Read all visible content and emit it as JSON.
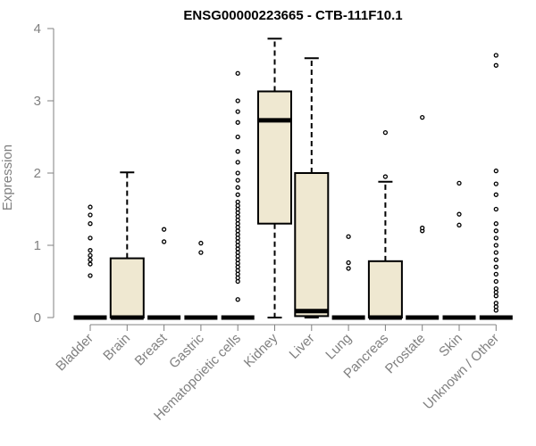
{
  "chart_data": {
    "type": "boxplot",
    "title": "ENSG00000223665 - CTB-111F10.1",
    "ylabel": "Expression",
    "xlabel": "",
    "ylim": [
      0,
      4
    ],
    "yticks": [
      0,
      1,
      2,
      3,
      4
    ],
    "colors": {
      "box_fill": "#efe8d1",
      "axis": "#808080"
    },
    "categories": [
      "Bladder",
      "Brain",
      "Breast",
      "Gastric",
      "Hematopoietic cells",
      "Kidney",
      "Liver",
      "Lung",
      "Pancreas",
      "Prostate",
      "Skin",
      "Unknown / Other"
    ],
    "boxes": [
      {
        "name": "Bladder",
        "q1": 0,
        "median": 0,
        "q3": 0,
        "wlo": 0,
        "whi": 0,
        "outliers": [
          0.58,
          0.74,
          0.8,
          0.86,
          0.93,
          1.1,
          1.3,
          1.42,
          1.53
        ]
      },
      {
        "name": "Brain",
        "q1": 0,
        "median": 0,
        "q3": 0.82,
        "wlo": 0,
        "whi": 2.01,
        "outliers": []
      },
      {
        "name": "Breast",
        "q1": 0,
        "median": 0,
        "q3": 0,
        "wlo": 0,
        "whi": 0,
        "outliers": [
          1.05,
          1.22
        ]
      },
      {
        "name": "Gastric",
        "q1": 0,
        "median": 0,
        "q3": 0,
        "wlo": 0,
        "whi": 0,
        "outliers": [
          0.9,
          1.03
        ]
      },
      {
        "name": "Hematopoietic cells",
        "q1": 0,
        "median": 0,
        "q3": 0,
        "wlo": 0,
        "whi": 0,
        "outliers": [
          0.25,
          0.5,
          0.55,
          0.6,
          0.65,
          0.7,
          0.75,
          0.8,
          0.85,
          0.9,
          0.95,
          1.0,
          1.05,
          1.1,
          1.15,
          1.2,
          1.25,
          1.3,
          1.35,
          1.4,
          1.45,
          1.5,
          1.55,
          1.6,
          1.7,
          1.8,
          1.9,
          2.0,
          2.15,
          2.3,
          2.5,
          2.7,
          2.85,
          3.0,
          3.38
        ]
      },
      {
        "name": "Kidney",
        "q1": 1.3,
        "median": 2.73,
        "q3": 3.13,
        "wlo": 0,
        "whi": 3.86,
        "outliers": []
      },
      {
        "name": "Liver",
        "q1": 0.02,
        "median": 0.09,
        "q3": 2.0,
        "wlo": 0,
        "whi": 3.59,
        "outliers": []
      },
      {
        "name": "Lung",
        "q1": 0,
        "median": 0,
        "q3": 0,
        "wlo": 0,
        "whi": 0,
        "outliers": [
          0.68,
          0.76,
          1.12
        ]
      },
      {
        "name": "Pancreas",
        "q1": 0,
        "median": 0,
        "q3": 0.78,
        "wlo": 0,
        "whi": 1.88,
        "outliers": [
          1.95,
          2.56
        ]
      },
      {
        "name": "Prostate",
        "q1": 0,
        "median": 0,
        "q3": 0,
        "wlo": 0,
        "whi": 0,
        "outliers": [
          1.2,
          1.24,
          2.77
        ]
      },
      {
        "name": "Skin",
        "q1": 0,
        "median": 0,
        "q3": 0,
        "wlo": 0,
        "whi": 0,
        "outliers": [
          1.28,
          1.43,
          1.86
        ]
      },
      {
        "name": "Unknown / Other",
        "q1": 0,
        "median": 0,
        "q3": 0,
        "wlo": 0,
        "whi": 0,
        "outliers": [
          0.1,
          0.15,
          0.2,
          0.3,
          0.35,
          0.4,
          0.5,
          0.6,
          0.7,
          0.8,
          0.9,
          1.0,
          1.1,
          1.2,
          1.3,
          1.5,
          1.7,
          1.85,
          2.03,
          3.49,
          3.63
        ]
      }
    ]
  }
}
